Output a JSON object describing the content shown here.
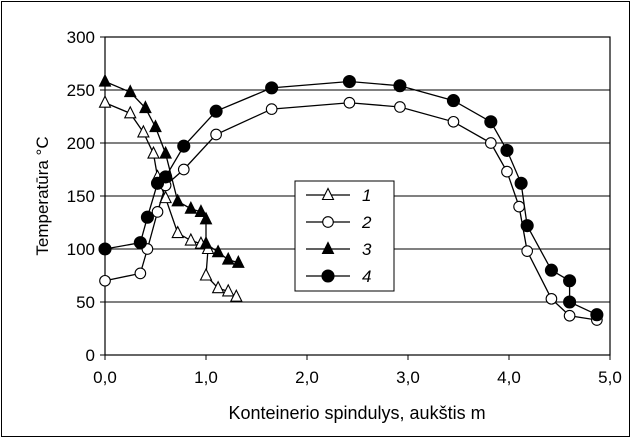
{
  "chart_data": {
    "type": "line",
    "title": "",
    "xlabel": "Konteinerio spindulys, aukštis m",
    "ylabel": "Temperatūra °C",
    "xlim": [
      0,
      5
    ],
    "ylim": [
      0,
      300
    ],
    "xticks": [
      "0,0",
      "1,0",
      "2,0",
      "3,0",
      "4,0",
      "5,0"
    ],
    "yticks": [
      "0",
      "50",
      "100",
      "150",
      "200",
      "250",
      "300"
    ],
    "grid": "horizontal",
    "legend_position": "center-left",
    "series": [
      {
        "name": "1",
        "marker": "triangle-open",
        "x": [
          0.0,
          0.25,
          0.38,
          0.48,
          0.52,
          0.6,
          0.72,
          0.85,
          0.95,
          1.02,
          1.0,
          1.12,
          1.22,
          1.3
        ],
        "y": [
          238,
          228,
          210,
          190,
          168,
          148,
          115,
          108,
          105,
          100,
          75,
          63,
          60,
          55
        ]
      },
      {
        "name": "2",
        "marker": "circle-open",
        "x": [
          0.0,
          0.35,
          0.42,
          0.52,
          0.6,
          0.78,
          1.1,
          1.65,
          2.42,
          2.92,
          3.45,
          3.82,
          3.98,
          4.1,
          4.18,
          4.42,
          4.6,
          4.87
        ],
        "y": [
          70,
          77,
          100,
          135,
          160,
          175,
          208,
          232,
          238,
          234,
          220,
          200,
          173,
          140,
          98,
          53,
          37,
          33
        ]
      },
      {
        "name": "3",
        "marker": "triangle-filled",
        "x": [
          0.0,
          0.25,
          0.4,
          0.5,
          0.6,
          0.72,
          0.85,
          0.95,
          1.0,
          1.0,
          1.12,
          1.22,
          1.32
        ],
        "y": [
          258,
          248,
          233,
          215,
          190,
          145,
          138,
          135,
          128,
          105,
          97,
          90,
          87
        ]
      },
      {
        "name": "4",
        "marker": "circle-filled",
        "x": [
          0.0,
          0.35,
          0.42,
          0.52,
          0.6,
          0.78,
          1.1,
          1.65,
          2.42,
          2.92,
          3.45,
          3.82,
          3.98,
          4.12,
          4.18,
          4.42,
          4.6,
          4.6,
          4.87
        ],
        "y": [
          100,
          106,
          130,
          162,
          168,
          197,
          230,
          252,
          258,
          254,
          240,
          220,
          193,
          162,
          122,
          80,
          70,
          50,
          38
        ]
      }
    ]
  }
}
